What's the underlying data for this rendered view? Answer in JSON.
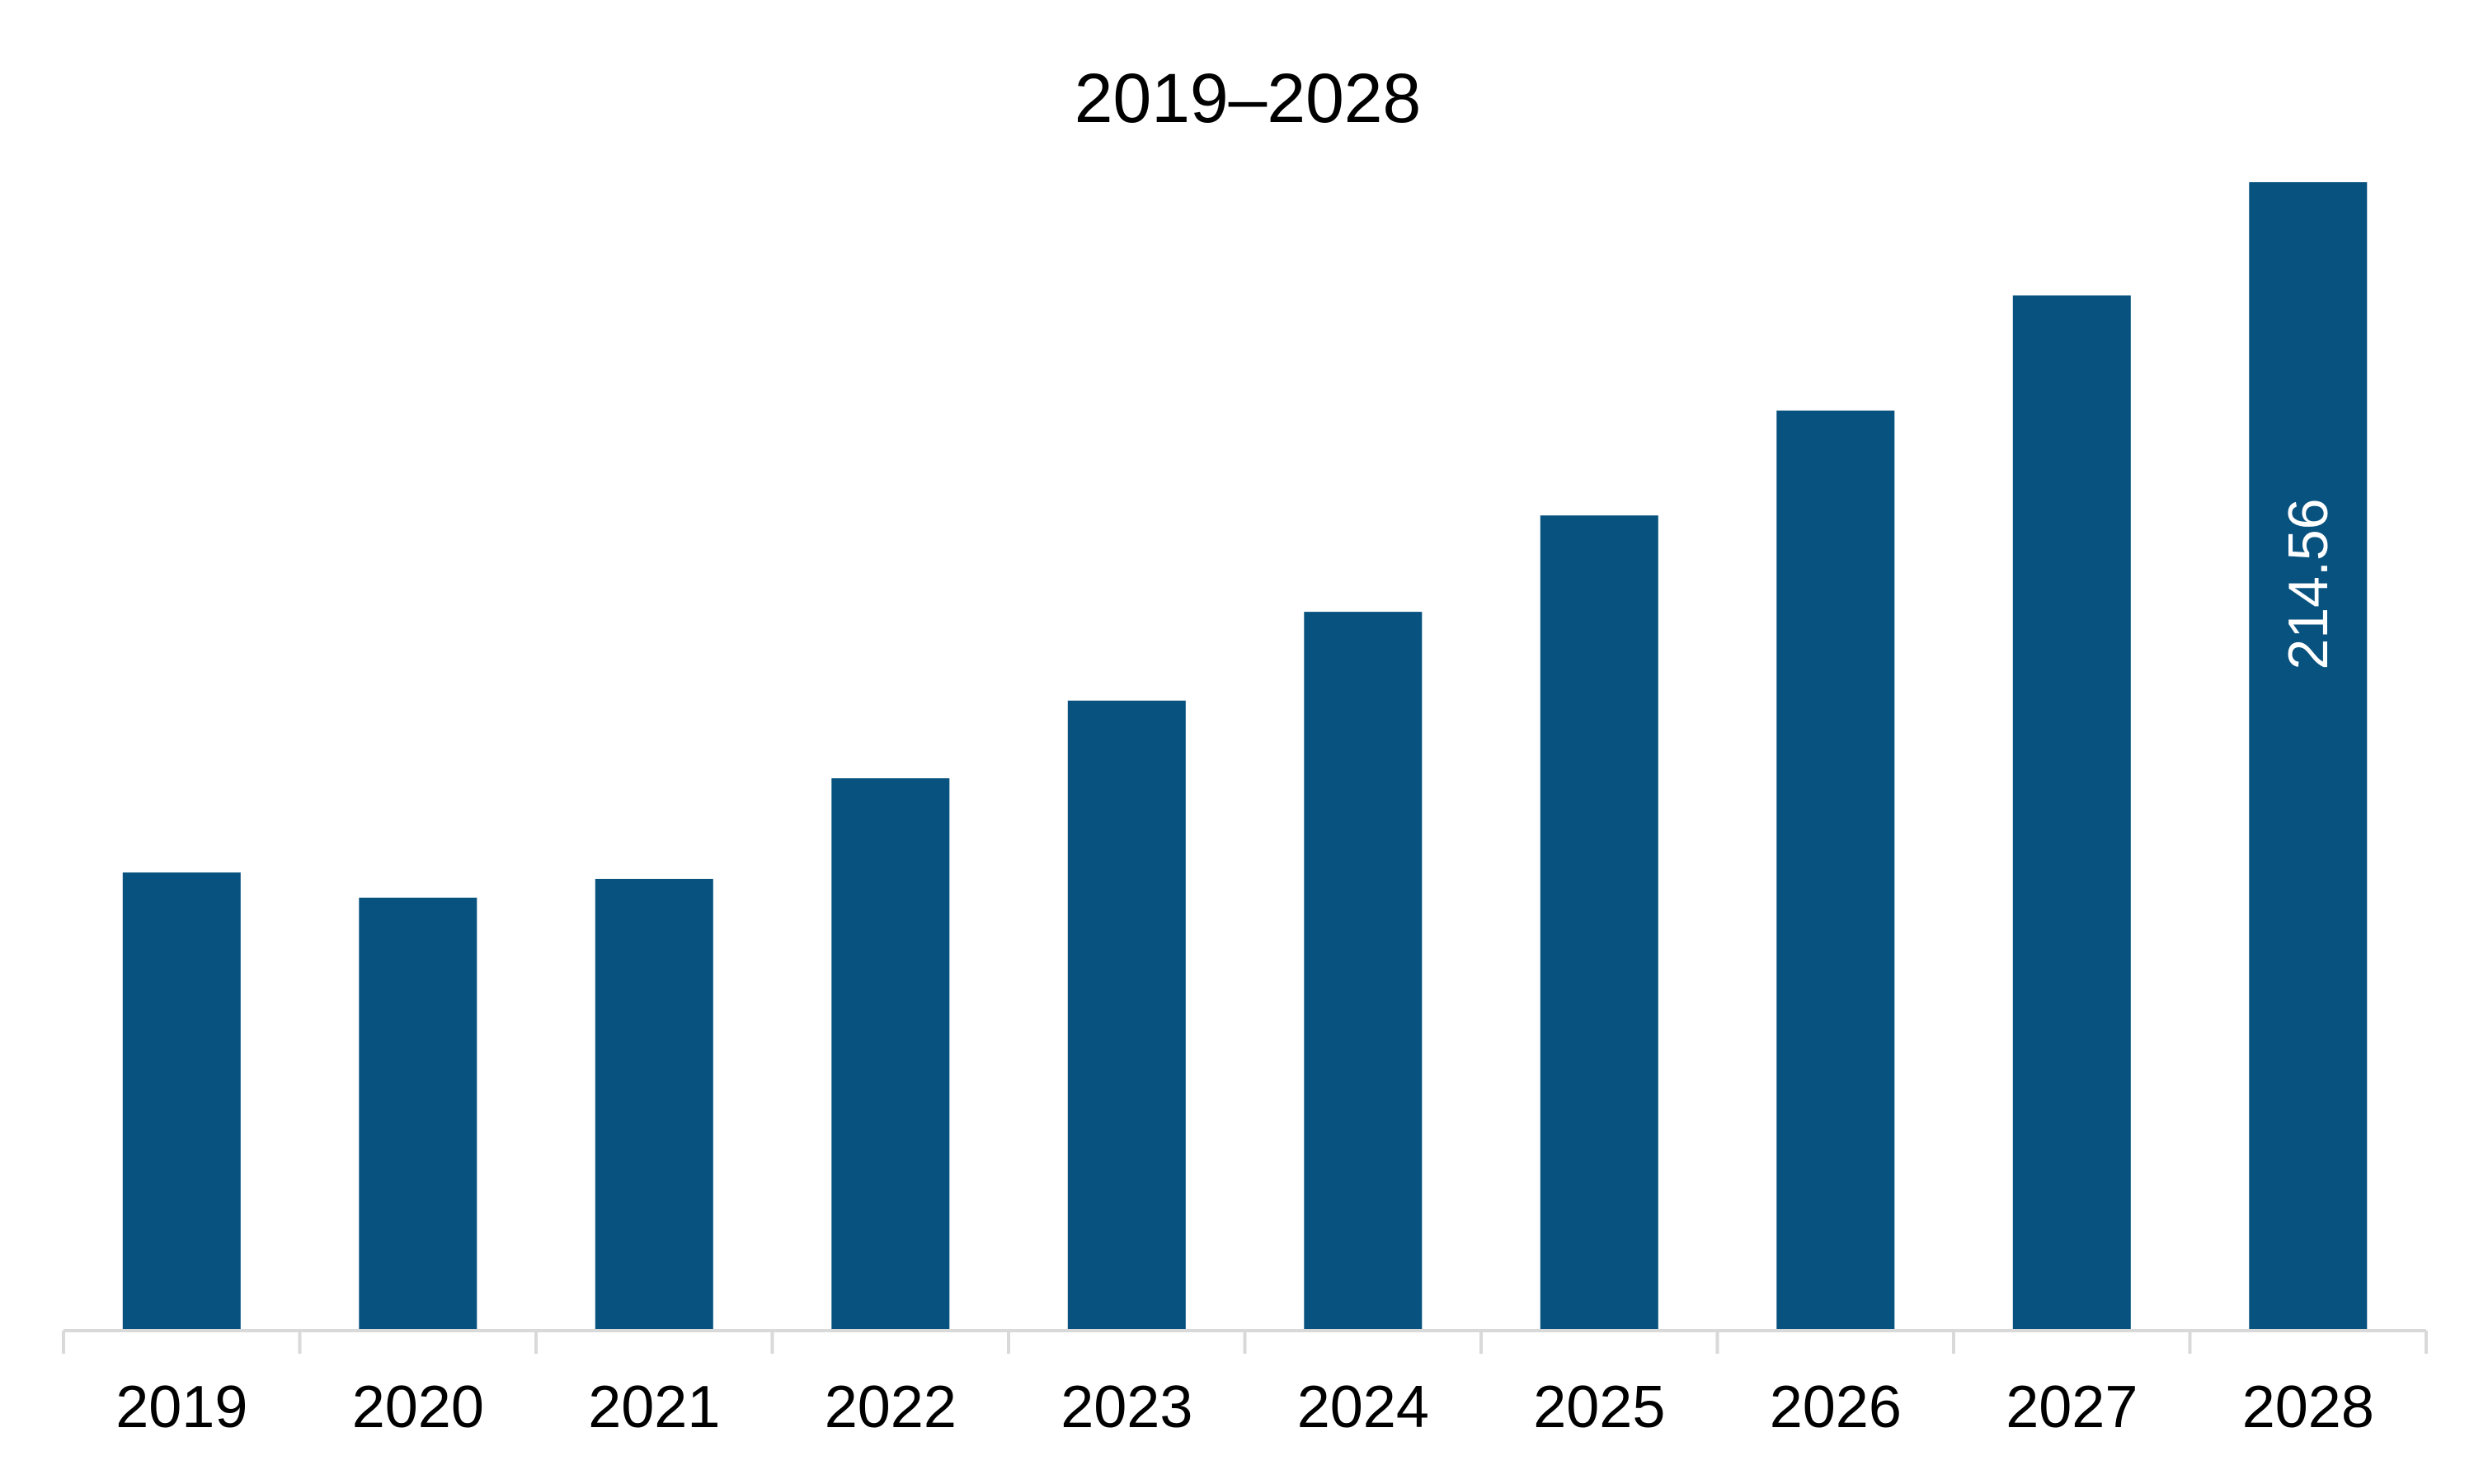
{
  "chart_data": {
    "type": "bar",
    "title": "2019–2028",
    "xlabel": "",
    "ylabel": "",
    "categories": [
      "2019",
      "2020",
      "2021",
      "2022",
      "2023",
      "2024",
      "2025",
      "2026",
      "2027",
      "2028"
    ],
    "values": [
      85.6,
      80.9,
      84.4,
      103.2,
      117.7,
      134.3,
      152.3,
      171.9,
      193.4,
      214.56
    ],
    "data_labels": [
      "",
      "",
      "",
      "",
      "",
      "",
      "",
      "",
      "",
      "214.56"
    ],
    "ylim": [
      0,
      214.56
    ],
    "grid": false,
    "legend": "none",
    "bar_color": "#08527f",
    "axis_color": "#d9d9d9",
    "label_color": "#ffffff"
  }
}
